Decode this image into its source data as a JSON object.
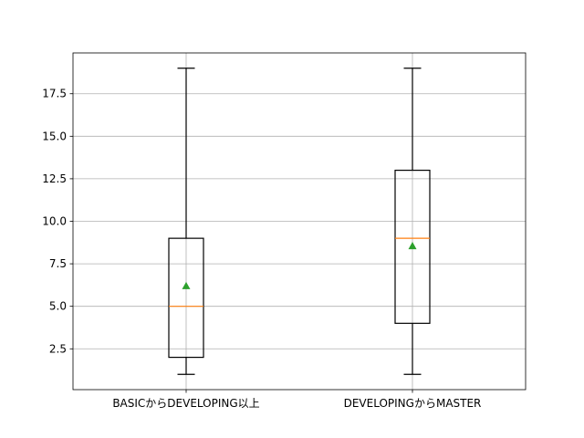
{
  "chart_data": {
    "type": "boxplot",
    "title": "",
    "xlabel": "",
    "ylabel": "",
    "categories": [
      "BASICからDEVELOPING以上",
      "DEVELOPINGからMASTER"
    ],
    "boxes": [
      {
        "label": "BASICからDEVELOPING以上",
        "whisker_low": 1,
        "q1": 2,
        "median": 5,
        "q3": 9,
        "whisker_high": 19,
        "mean": 6.2
      },
      {
        "label": "DEVELOPINGからMASTER",
        "whisker_low": 1,
        "q1": 4,
        "median": 9,
        "q3": 13,
        "whisker_high": 19,
        "mean": 8.55
      }
    ],
    "ylim": [
      0.1,
      19.9
    ],
    "yticks": [
      2.5,
      5.0,
      7.5,
      10.0,
      12.5,
      15.0,
      17.5
    ],
    "ytick_labels": [
      "2.5",
      "5.0",
      "7.5",
      "10.0",
      "12.5",
      "15.0",
      "17.5"
    ],
    "grid": true,
    "colors": {
      "box": "#000000",
      "median": "#ff7f0e",
      "mean": "#2ca02c",
      "grid": "#b0b0b0",
      "axes": "#000000"
    }
  }
}
